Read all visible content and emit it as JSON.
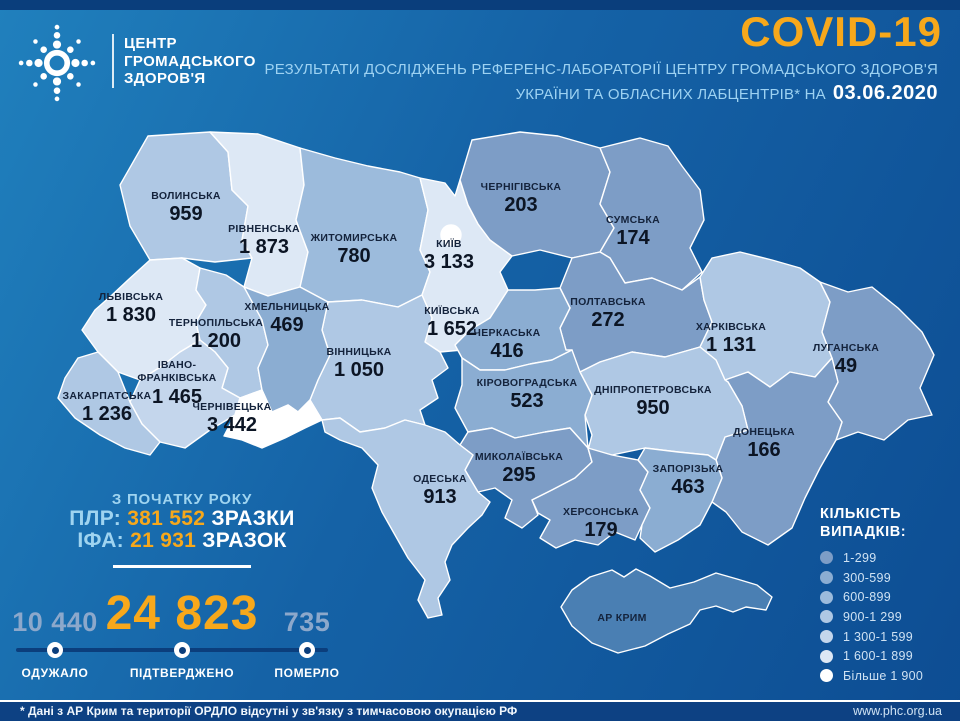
{
  "header": {
    "org_lines": [
      "ЦЕНТР",
      "ГРОМАДСЬКОГО",
      "ЗДОРОВ'Я"
    ],
    "title": "COVID-19",
    "subtitle_line1": "РЕЗУЛЬТАТИ ДОСЛІДЖЕНЬ РЕФЕРЕНС-ЛАБОРАТОРІЇ ЦЕНТРУ ГРОМАДСЬКОГО ЗДОРОВ'Я",
    "subtitle_line2_prefix": "УКРАЇНИ ТА ОБЛАСНИХ ЛАБЦЕНТРІВ* НА",
    "date": "03.06.2020"
  },
  "colors": {
    "accent_orange": "#f7a81b",
    "background_top": "#2080bd",
    "background_bottom": "#0d4d93",
    "crimea_fill": "#4a7fb3",
    "muted_number": "#8ca8cb",
    "timeline": "#0b3e7c"
  },
  "map": {
    "crimea_color": "#4a7fb3",
    "regions": [
      {
        "id": "volyn",
        "name": "ВОЛИНСЬКА",
        "value": "959",
        "category": 4
      },
      {
        "id": "rivne",
        "name": "РІВНЕНСЬКА",
        "value": "1 873",
        "category": 6
      },
      {
        "id": "zhytomyr",
        "name": "ЖИТОМИРСЬКА",
        "value": "780",
        "category": 3
      },
      {
        "id": "chernihiv",
        "name": "ЧЕРНІГІВСЬКА",
        "value": "203",
        "category": 1
      },
      {
        "id": "sumy",
        "name": "СУМСЬКА",
        "value": "174",
        "category": 1
      },
      {
        "id": "kyiv-obl",
        "name": "КИЇВСЬКА",
        "value": "1 652",
        "category": 6
      },
      {
        "id": "kyiv-city",
        "name": "КИЇВ",
        "value": "3 133",
        "category": 7
      },
      {
        "id": "lviv",
        "name": "ЛЬВІВСЬКА",
        "value": "1 830",
        "category": 6
      },
      {
        "id": "ternopil",
        "name": "ТЕРНОПІЛЬСЬКА",
        "value": "1 200",
        "category": 4
      },
      {
        "id": "khmelnytskyi",
        "name": "ХМЕЛЬНИЦЬКА",
        "value": "469",
        "category": 2
      },
      {
        "id": "vinnytsia",
        "name": "ВІННИЦЬКА",
        "value": "1 050",
        "category": 4
      },
      {
        "id": "cherkasy",
        "name": "ЧЕРКАСЬКА",
        "value": "416",
        "category": 2
      },
      {
        "id": "poltava",
        "name": "ПОЛТАВСЬКА",
        "value": "272",
        "category": 1
      },
      {
        "id": "kharkiv",
        "name": "ХАРКІВСЬКА",
        "value": "1 131",
        "category": 4
      },
      {
        "id": "luhansk",
        "name": "ЛУГАНСЬКА",
        "value": "49",
        "category": 1
      },
      {
        "id": "ivano-frankivsk",
        "name": "ІВАНО-",
        "name2": "ФРАНКІВСЬКА",
        "value": "1 465",
        "category": 5
      },
      {
        "id": "zakarpattia",
        "name": "ЗАКАРПАТСЬКА",
        "value": "1 236",
        "category": 4
      },
      {
        "id": "chernivtsi",
        "name": "ЧЕРНІВЕЦЬКА",
        "value": "3 442",
        "category": 7
      },
      {
        "id": "kirovohrad",
        "name": "КІРОВОГРАДСЬКА",
        "value": "523",
        "category": 2
      },
      {
        "id": "dnipro",
        "name": "ДНІПРОПЕТРОВСЬКА",
        "value": "950",
        "category": 4
      },
      {
        "id": "donetsk",
        "name": "ДОНЕЦЬКА",
        "value": "166",
        "category": 1
      },
      {
        "id": "mykolaiv",
        "name": "МИКОЛАЇВСЬКА",
        "value": "295",
        "category": 1
      },
      {
        "id": "odesa",
        "name": "ОДЕСЬКА",
        "value": "913",
        "category": 4
      },
      {
        "id": "zaporizhia",
        "name": "ЗАПОРІЗЬКА",
        "value": "463",
        "category": 2
      },
      {
        "id": "kherson",
        "name": "ХЕРСОНСЬКА",
        "value": "179",
        "category": 1
      },
      {
        "id": "crimea",
        "name": "АР КРИМ",
        "value": null,
        "category": null
      }
    ]
  },
  "chart_data": {
    "type": "heatmap",
    "title": "COVID-19 — РЕЗУЛЬТАТИ ДОСЛІДЖЕНЬ РЕФЕРЕНС-ЛАБОРАТОРІЇ ЦЕНТРУ ГРОМАДСЬКОГО ЗДОРОВ'Я УКРАЇНИ ТА ОБЛАСНИХ ЛАБЦЕНТРІВ* НА 03.06.2020",
    "categories": [
      "ВОЛИНСЬКА",
      "РІВНЕНСЬКА",
      "ЖИТОМИРСЬКА",
      "ЧЕРНІГІВСЬКА",
      "СУМСЬКА",
      "КИЇВСЬКА",
      "КИЇВ",
      "ЛЬВІВСЬКА",
      "ТЕРНОПІЛЬСЬКА",
      "ХМЕЛЬНИЦЬКА",
      "ВІННИЦЬКА",
      "ЧЕРКАСЬКА",
      "ПОЛТАВСЬКА",
      "ХАРКІВСЬКА",
      "ЛУГАНСЬКА",
      "ІВАНО-ФРАНКІВСЬКА",
      "ЗАКАРПАТСЬКА",
      "ЧЕРНІВЕЦЬКА",
      "КІРОВОГРАДСЬКА",
      "ДНІПРОПЕТРОВСЬКА",
      "ДОНЕЦЬКА",
      "МИКОЛАЇВСЬКА",
      "ОДЕСЬКА",
      "ЗАПОРІЗЬКА",
      "ХЕРСОНСЬКА"
    ],
    "values": [
      959,
      1873,
      780,
      203,
      174,
      1652,
      3133,
      1830,
      1200,
      469,
      1050,
      416,
      272,
      1131,
      49,
      1465,
      1236,
      3442,
      523,
      950,
      166,
      295,
      913,
      463,
      179
    ],
    "totals": {
      "recovered": 10440,
      "confirmed": 24823,
      "died": 735,
      "pcr_samples": 381552,
      "ifa_samples": 21931
    },
    "legend_position": "bottom-right",
    "bins": [
      "1-299",
      "300-599",
      "600-899",
      "900-1 299",
      "1 300-1 599",
      "1 600-1 899",
      "Більше 1 900"
    ]
  },
  "stats": {
    "since_title": "З ПОЧАТКУ РОКУ",
    "pcr_label": "ПЛР:",
    "pcr_value": "381 552",
    "pcr_unit": "ЗРАЗКИ",
    "ifa_label": "ІФА:",
    "ifa_value": "21 931",
    "ifa_unit": "ЗРАЗОК",
    "recovered_value": "10 440",
    "recovered_label": "ОДУЖАЛО",
    "confirmed_value": "24 823",
    "confirmed_label": "ПІДТВЕРДЖЕНО",
    "died_value": "735",
    "died_label": "ПОМЕРЛО"
  },
  "legend": {
    "title_line1": "КІЛЬКІСТЬ",
    "title_line2": "ВИПАДКІВ:",
    "items": [
      {
        "label": "1-299",
        "color": "#7d9dc6"
      },
      {
        "label": "300-599",
        "color": "#8badd2"
      },
      {
        "label": "600-899",
        "color": "#9cbbdc"
      },
      {
        "label": "900-1 299",
        "color": "#afc8e4"
      },
      {
        "label": "1 300-1 599",
        "color": "#c4d6ec"
      },
      {
        "label": "1 600-1 899",
        "color": "#dde8f5"
      },
      {
        "label": "Більше 1 900",
        "color": "#ffffff"
      }
    ]
  },
  "footer": {
    "note": "* Дані з АР Крим та території ОРДЛО відсутні у зв'язку з тимчасовою окупацією РФ",
    "url": "www.phc.org.ua"
  },
  "icons": {
    "logo": "phc-starburst-logo"
  }
}
